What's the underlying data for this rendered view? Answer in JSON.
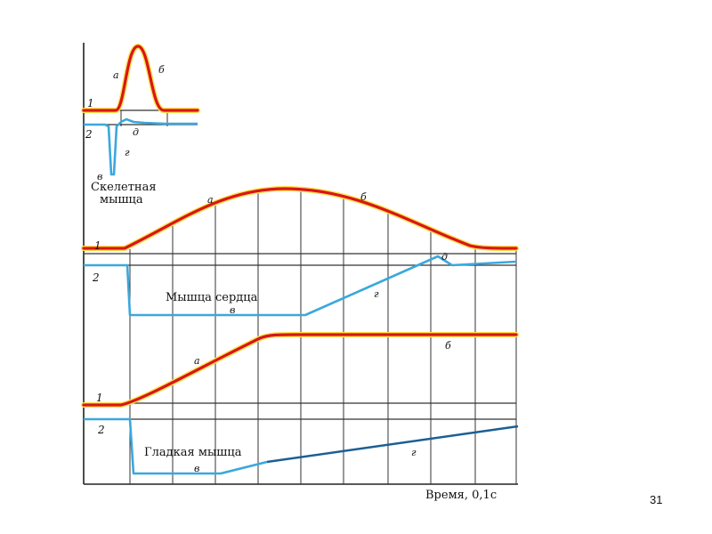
{
  "skeletal": {
    "caption_line1": "Скелетная",
    "caption_line2": "мышца",
    "curve1_num": "1",
    "curve2_num": "2",
    "label_a": "а",
    "label_b": "б",
    "label_v": "в",
    "label_g": "г",
    "label_d": "д"
  },
  "cardiac": {
    "caption": "Мышца сердца",
    "curve1_num": "1",
    "curve2_num": "2",
    "label_a": "а",
    "label_b": "б",
    "label_v": "в",
    "label_g": "г",
    "label_d": "д"
  },
  "smooth": {
    "caption": "Гладкая мышца",
    "curve1_num": "1",
    "curve2_num": "2",
    "label_a": "а",
    "label_b": "б",
    "label_v": "в",
    "label_g": "г"
  },
  "axis": {
    "xlabel": "Время,  0,1с"
  },
  "slide_number": "31",
  "colors": {
    "contraction": "#d8161b",
    "highlight": "#ffe04a",
    "potential": "#3aa8dd",
    "potential_dark": "#1b5f95"
  }
}
